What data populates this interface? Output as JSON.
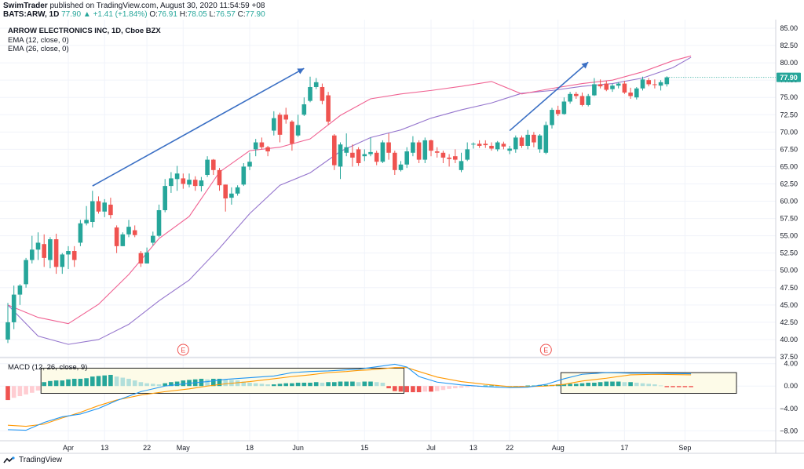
{
  "header": {
    "publisher": "SwimTrader",
    "published_text": "published on TradingView.com, August 30, 2020 11:54:59 +08",
    "ticker": "BATS:ARW, 1D",
    "last": "77.90",
    "change": "▲ +1.41 (+1.84%)",
    "o": "76.91",
    "h": "78.05",
    "l": "76.57",
    "c": "77.90",
    "o_label": "O:",
    "h_label": "H:",
    "l_label": "L:",
    "c_label": "C:"
  },
  "legend": {
    "title": "ARROW ELECTRONICS INC, 1D, Cboe BZX",
    "ema12": "EMA (12, close, 0)",
    "ema26": "EMA (26, close, 0)",
    "macd": "MACD (12, 26, close, 9)"
  },
  "footer": {
    "brand": "TradingView",
    "logo_icon": "tradingview-logo-icon"
  },
  "colors": {
    "up": "#26a69a",
    "down": "#ef5350",
    "ema12": "#f06292",
    "ema26": "#9575cd",
    "macd_line": "#2196f3",
    "signal_line": "#ff9800",
    "arrow": "#3a6fc4",
    "hist_up_strong": "#26a69a",
    "hist_up_weak": "#b2dfdb",
    "hist_down_strong": "#ef5350",
    "hist_down_weak": "#ffcdd2"
  },
  "chart_data": [
    {
      "type": "candlestick",
      "title": "ARROW ELECTRONICS INC, 1D, Cboe BZX",
      "ylim": [
        37.5,
        85
      ],
      "y_ticks": [
        37.5,
        40,
        42.5,
        45,
        47.5,
        50,
        52.5,
        55,
        57.5,
        60,
        62.5,
        65,
        67.5,
        70,
        72.5,
        75,
        77.5,
        80,
        82.5,
        85
      ],
      "y_tick_labels": [
        "37.50",
        "40.00",
        "42.50",
        "45.00",
        "47.50",
        "50.00",
        "52.50",
        "55.00",
        "57.50",
        "60.00",
        "62.50",
        "65.00",
        "67.50",
        "70.00",
        "72.50",
        "75.00",
        "77.50",
        "80.00",
        "82.50",
        "85.00"
      ],
      "x_tick_labels": [
        "Apr",
        "13",
        "22",
        "May",
        "18",
        "Jun",
        "15",
        "Jul",
        "13",
        "22",
        "Aug",
        "17",
        "Sep"
      ],
      "x_tick_positions": [
        10,
        16,
        23,
        29,
        40,
        48,
        59,
        70,
        77,
        83,
        91,
        102,
        112
      ],
      "last_price": 77.9,
      "earnings_markers": [
        {
          "label": "E",
          "bar": 29
        },
        {
          "label": "E",
          "bar": 89
        }
      ],
      "annotations": [
        {
          "type": "arrow",
          "from": {
            "bar": 14,
            "price": 62.2
          },
          "to": {
            "bar": 49,
            "price": 79.2
          }
        },
        {
          "type": "arrow",
          "from": {
            "bar": 83,
            "price": 70.2
          },
          "to": {
            "bar": 96,
            "price": 80.1
          }
        }
      ],
      "candles": [
        [
          40.0,
          45.3,
          39.5,
          42.5
        ],
        [
          42.5,
          47.8,
          41.5,
          46.5
        ],
        [
          46.5,
          48.0,
          45.0,
          47.8
        ],
        [
          48.0,
          51.8,
          47.5,
          51.5
        ],
        [
          51.5,
          55.0,
          51.0,
          53.0
        ],
        [
          53.0,
          55.5,
          51.5,
          54.0
        ],
        [
          53.8,
          55.2,
          50.5,
          51.8
        ],
        [
          51.5,
          54.8,
          50.3,
          54.5
        ],
        [
          54.5,
          55.3,
          49.5,
          50.5
        ],
        [
          50.5,
          52.5,
          49.5,
          52.3
        ],
        [
          52.3,
          53.5,
          50.2,
          52.8
        ],
        [
          52.8,
          53.5,
          50.5,
          51.5
        ],
        [
          54.0,
          57.3,
          53.5,
          56.8
        ],
        [
          56.8,
          59.3,
          56.5,
          57.3
        ],
        [
          57.0,
          61.5,
          56.2,
          60.0
        ],
        [
          60.0,
          60.7,
          58.2,
          58.5
        ],
        [
          58.5,
          60.3,
          57.7,
          59.8
        ],
        [
          59.5,
          60.5,
          57.5,
          58.0
        ],
        [
          56.2,
          56.5,
          52.5,
          53.5
        ],
        [
          53.5,
          55.5,
          53.5,
          55.2
        ],
        [
          55.2,
          57.3,
          54.8,
          56.3
        ],
        [
          55.8,
          56.5,
          54.8,
          55.1
        ],
        [
          52.5,
          52.8,
          50.5,
          51.0
        ],
        [
          51.0,
          53.3,
          51.0,
          52.6
        ],
        [
          54.0,
          55.6,
          53.6,
          55.0
        ],
        [
          55.0,
          59.5,
          54.8,
          58.7
        ],
        [
          58.7,
          63.2,
          58.4,
          62.2
        ],
        [
          62.2,
          64.2,
          61.2,
          63.3
        ],
        [
          63.2,
          65.1,
          61.5,
          64.0
        ],
        [
          63.3,
          64.0,
          61.8,
          62.5
        ],
        [
          62.4,
          64.0,
          62.0,
          63.1
        ],
        [
          63.1,
          63.6,
          61.5,
          62.2
        ],
        [
          62.2,
          63.5,
          61.4,
          63.0
        ],
        [
          63.8,
          66.5,
          63.5,
          66.0
        ],
        [
          66.0,
          66.1,
          63.8,
          64.5
        ],
        [
          64.5,
          64.8,
          61.5,
          62.3
        ],
        [
          62.4,
          62.4,
          58.5,
          60.4
        ],
        [
          60.5,
          62.0,
          59.5,
          61.1
        ],
        [
          61.1,
          62.3,
          60.8,
          62.0
        ],
        [
          62.4,
          65.5,
          62.2,
          65.0
        ],
        [
          65.0,
          67.0,
          64.5,
          65.7
        ],
        [
          67.5,
          69.0,
          66.5,
          68.5
        ],
        [
          68.5,
          69.2,
          67.5,
          67.8
        ],
        [
          67.8,
          68.0,
          66.5,
          67.2
        ],
        [
          70.2,
          73.0,
          69.5,
          72.0
        ],
        [
          72.5,
          72.8,
          68.5,
          69.6
        ],
        [
          72.5,
          73.5,
          71.2,
          71.8
        ],
        [
          71.5,
          71.7,
          67.3,
          68.3
        ],
        [
          69.5,
          72.5,
          69.3,
          71.0
        ],
        [
          72.5,
          75.0,
          72.3,
          74.0
        ],
        [
          74.5,
          78.0,
          74.3,
          76.5
        ],
        [
          76.5,
          77.8,
          76.2,
          77.2
        ],
        [
          76.5,
          77.0,
          74.0,
          74.5
        ],
        [
          75.3,
          75.8,
          71.0,
          71.5
        ],
        [
          69.5,
          69.7,
          64.5,
          65.2
        ],
        [
          65.0,
          68.5,
          63.2,
          68.2
        ],
        [
          67.0,
          69.8,
          66.5,
          67.8
        ],
        [
          67.0,
          68.2,
          65.0,
          66.3
        ],
        [
          67.5,
          67.8,
          65.1,
          65.5
        ],
        [
          66.5,
          67.5,
          65.8,
          66.8
        ],
        [
          66.8,
          69.2,
          66.5,
          67.1
        ],
        [
          67.0,
          67.3,
          65.2,
          65.7
        ],
        [
          65.7,
          68.8,
          65.5,
          68.5
        ],
        [
          68.5,
          69.8,
          66.0,
          67.0
        ],
        [
          67.0,
          67.3,
          63.8,
          64.5
        ],
        [
          64.5,
          65.8,
          64.3,
          65.3
        ],
        [
          65.3,
          67.8,
          64.8,
          67.2
        ],
        [
          67.0,
          69.4,
          66.5,
          68.5
        ],
        [
          68.5,
          68.8,
          65.5,
          66.0
        ],
        [
          66.0,
          69.2,
          65.5,
          68.8
        ],
        [
          68.8,
          68.9,
          66.5,
          67.3
        ],
        [
          67.2,
          67.8,
          66.3,
          67.0
        ],
        [
          67.0,
          67.3,
          65.5,
          66.3
        ],
        [
          66.3,
          66.8,
          65.0,
          66.1
        ],
        [
          66.5,
          67.5,
          65.5,
          66.0
        ],
        [
          64.5,
          67.0,
          64.2,
          65.8
        ],
        [
          66.0,
          68.5,
          65.8,
          67.5
        ],
        [
          68.2,
          68.5,
          67.6,
          68.3
        ],
        [
          68.3,
          68.8,
          67.7,
          68.0
        ],
        [
          68.3,
          68.8,
          67.7,
          68.1
        ],
        [
          68.0,
          68.5,
          67.3,
          67.6
        ],
        [
          67.5,
          68.7,
          67.2,
          68.5
        ],
        [
          68.3,
          68.6,
          67.5,
          67.9
        ],
        [
          67.3,
          68.0,
          66.8,
          67.6
        ],
        [
          67.5,
          69.5,
          67.0,
          69.2
        ],
        [
          69.2,
          69.5,
          67.7,
          68.0
        ],
        [
          68.0,
          70.3,
          67.5,
          69.6
        ],
        [
          69.6,
          70.0,
          67.8,
          68.5
        ],
        [
          67.5,
          69.7,
          67.0,
          69.5
        ],
        [
          67.0,
          71.5,
          66.8,
          71.0
        ],
        [
          71.0,
          73.5,
          70.5,
          73.2
        ],
        [
          73.2,
          73.8,
          72.3,
          72.6
        ],
        [
          72.6,
          75.0,
          72.5,
          74.4
        ],
        [
          74.4,
          75.8,
          74.1,
          75.5
        ],
        [
          75.5,
          75.8,
          74.8,
          75.2
        ],
        [
          75.2,
          75.7,
          73.7,
          73.9
        ],
        [
          73.9,
          75.5,
          73.7,
          75.2
        ],
        [
          75.3,
          77.8,
          75.2,
          76.9
        ],
        [
          76.9,
          77.6,
          76.3,
          76.6
        ],
        [
          77.0,
          77.4,
          75.9,
          76.1
        ],
        [
          76.2,
          77.0,
          75.8,
          76.7
        ],
        [
          76.7,
          77.2,
          76.3,
          77.0
        ],
        [
          77.0,
          77.4,
          75.5,
          75.7
        ],
        [
          75.7,
          76.4,
          74.8,
          75.2
        ],
        [
          75.0,
          76.5,
          74.7,
          76.3
        ],
        [
          76.3,
          78.0,
          76.0,
          77.6
        ],
        [
          77.5,
          77.8,
          76.6,
          76.9
        ],
        [
          76.9,
          77.6,
          76.3,
          76.8
        ],
        [
          76.7,
          77.5,
          76.0,
          77.2
        ],
        [
          76.91,
          78.05,
          76.57,
          77.9
        ]
      ],
      "ema12": [
        45.0,
        43.2,
        42.3,
        45.1,
        49.4,
        54.6,
        57.8,
        64.2,
        67.3,
        67.8,
        69.0,
        72.4,
        74.8,
        75.5,
        76.0,
        76.6,
        77.3,
        75.5,
        76.3,
        77.0,
        77.5,
        78.7,
        80.3,
        81.0
      ],
      "ema26": [
        45.0,
        40.5,
        39.3,
        40.0,
        42.2,
        45.6,
        48.6,
        53.2,
        58.2,
        62.3,
        64.1,
        67.2,
        69.2,
        70.3,
        72.0,
        73.2,
        74.2,
        75.6,
        76.0,
        76.6,
        77.0,
        77.8,
        79.3,
        80.8
      ],
      "ema_breaks_bars": [
        0,
        5,
        10,
        15,
        20,
        25,
        30,
        35,
        40,
        45,
        50,
        55,
        60,
        65,
        70,
        75,
        80,
        85,
        90,
        95,
        100,
        105,
        110,
        113
      ]
    },
    {
      "type": "macd",
      "title": "MACD (12, 26, close, 9)",
      "ylim": [
        -9.5,
        4.8
      ],
      "y_ticks": [
        4,
        0,
        -4,
        -8
      ],
      "y_tick_labels": [
        "4.00",
        "0.00",
        "−4.00",
        "−8.00"
      ],
      "macd": [
        -7.8,
        -7.9,
        -6.5,
        -5.5,
        -5.0,
        -4.0,
        -2.6,
        -1.0,
        0.0,
        0.5,
        0.8,
        1.2,
        1.5,
        1.8,
        2.4,
        2.6,
        2.7,
        2.9,
        3.0,
        3.3,
        3.6,
        3.9,
        3.4,
        1.7,
        0.7,
        0.2,
        -0.1,
        -0.3,
        -0.2,
        0.3,
        1.3,
        2.1,
        2.4,
        2.3,
        2.3,
        2.2
      ],
      "signal": [
        -7.0,
        -7.2,
        -6.8,
        -5.7,
        -4.7,
        -3.5,
        -2.5,
        -1.6,
        -1.0,
        -0.5,
        0.0,
        0.4,
        0.8,
        1.3,
        1.7,
        2.0,
        2.4,
        2.6,
        2.8,
        2.9,
        3.1,
        3.3,
        3.3,
        2.6,
        1.6,
        0.8,
        0.3,
        -0.1,
        -0.1,
        0.0,
        0.3,
        0.9,
        1.4,
        2.0,
        2.1,
        2.0
      ],
      "line_bars": [
        0,
        3,
        6,
        9,
        12,
        15,
        18,
        22,
        26,
        30,
        33,
        36,
        40,
        44,
        47,
        50,
        53,
        56,
        58,
        60,
        62,
        64,
        66,
        68,
        71,
        75,
        79,
        83,
        86,
        89,
        92,
        95,
        99,
        103,
        107,
        113
      ],
      "histogram": [
        -2.5,
        -2.1,
        -1.8,
        -1.5,
        -1.2,
        -0.8,
        0.7,
        0.9,
        1.0,
        1.0,
        1.2,
        1.3,
        1.3,
        1.4,
        1.7,
        1.8,
        1.9,
        2.0,
        1.7,
        1.5,
        1.3,
        1.0,
        0.7,
        0.5,
        0.4,
        0.3,
        0.5,
        0.7,
        0.8,
        1.0,
        1.1,
        1.2,
        1.3,
        1.2,
        1.3,
        1.3,
        1.2,
        1.1,
        1.0,
        0.8,
        0.6,
        0.5,
        0.4,
        0.3,
        0.3,
        0.4,
        0.5,
        0.5,
        0.6,
        0.6,
        0.6,
        0.7,
        0.6,
        0.7,
        0.7,
        0.8,
        0.8,
        0.8,
        0.7,
        0.8,
        0.8,
        0.7,
        0.6,
        -0.4,
        -0.9,
        -1.0,
        -1.1,
        -1.1,
        -1.1,
        -1.0,
        -1.0,
        -0.9,
        -0.7,
        -0.5,
        -0.4,
        -0.3,
        -0.2,
        -0.1,
        -0.1,
        0.1,
        0.1,
        0.1,
        0.0,
        0.0,
        0.0,
        -0.1,
        0.1,
        0.1,
        0.2,
        0.2,
        0.2,
        0.3,
        0.3,
        0.4,
        0.4,
        0.5,
        0.6,
        0.6,
        0.7,
        0.8,
        0.8,
        0.8,
        0.7,
        0.7,
        0.6,
        0.5,
        0.4,
        0.3,
        0.1,
        -0.2,
        -0.2,
        -0.2,
        -0.2,
        -0.2
      ],
      "highlight_boxes": [
        {
          "from_bar": 6,
          "to_bar": 65,
          "ylim": [
            -1.3,
            3.2
          ]
        },
        {
          "from_bar": 92,
          "to_bar": 120,
          "ylim": [
            -1.3,
            2.4
          ]
        }
      ]
    }
  ]
}
